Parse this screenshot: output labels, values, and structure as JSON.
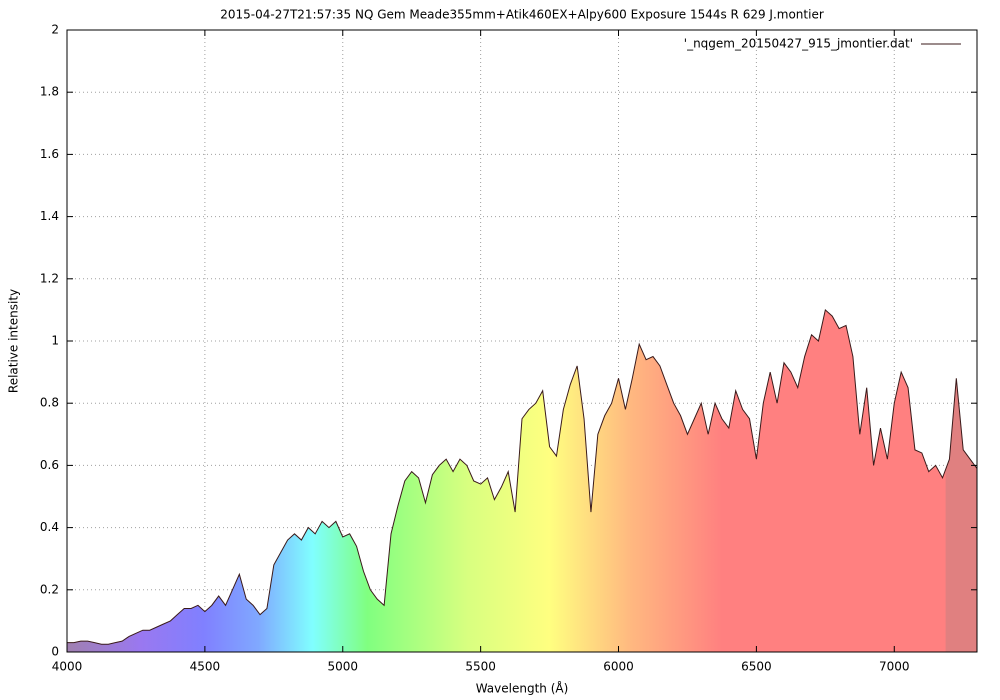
{
  "chart_data": {
    "type": "line",
    "title": "2015-04-27T21:57:35 NQ Gem Meade355mm+Atik460EX+Alpy600 Exposure 1544s R 629 J.montier",
    "x_label": "Wavelength (Å)",
    "y_label": "Relative intensity",
    "xlim": [
      4000,
      7300
    ],
    "ylim": [
      0,
      2
    ],
    "xticks": [
      4000,
      4500,
      5000,
      5500,
      6000,
      6500,
      7000
    ],
    "yticks": [
      0,
      0.2,
      0.4,
      0.6,
      0.8,
      1,
      1.2,
      1.4,
      1.6,
      1.8,
      2
    ],
    "grid": true,
    "legend": "top-right",
    "x": [
      4000,
      4025,
      4050,
      4075,
      4100,
      4125,
      4150,
      4175,
      4200,
      4225,
      4250,
      4275,
      4300,
      4325,
      4350,
      4375,
      4400,
      4425,
      4450,
      4475,
      4500,
      4525,
      4550,
      4575,
      4600,
      4625,
      4650,
      4675,
      4700,
      4725,
      4750,
      4775,
      4800,
      4825,
      4850,
      4875,
      4900,
      4925,
      4950,
      4975,
      5000,
      5025,
      5050,
      5075,
      5100,
      5125,
      5150,
      5175,
      5200,
      5225,
      5250,
      5275,
      5300,
      5325,
      5350,
      5375,
      5400,
      5425,
      5450,
      5475,
      5500,
      5525,
      5550,
      5575,
      5600,
      5625,
      5650,
      5675,
      5700,
      5725,
      5750,
      5775,
      5800,
      5825,
      5850,
      5875,
      5900,
      5925,
      5950,
      5975,
      6000,
      6025,
      6050,
      6075,
      6100,
      6125,
      6150,
      6175,
      6200,
      6225,
      6250,
      6275,
      6300,
      6325,
      6350,
      6375,
      6400,
      6425,
      6450,
      6475,
      6500,
      6525,
      6550,
      6575,
      6600,
      6625,
      6650,
      6675,
      6700,
      6725,
      6750,
      6775,
      6800,
      6825,
      6850,
      6875,
      6900,
      6925,
      6950,
      6975,
      7000,
      7025,
      7050,
      7075,
      7100,
      7125,
      7150,
      7175,
      7200,
      7225,
      7250,
      7275,
      7300
    ],
    "series": [
      {
        "name": "'_nqgem_20150427_915_jmontier.dat'",
        "color": "#3a1a1a",
        "values": [
          0.03,
          0.03,
          0.035,
          0.035,
          0.03,
          0.025,
          0.025,
          0.03,
          0.035,
          0.05,
          0.06,
          0.07,
          0.07,
          0.08,
          0.09,
          0.1,
          0.12,
          0.14,
          0.14,
          0.15,
          0.13,
          0.15,
          0.18,
          0.15,
          0.2,
          0.25,
          0.17,
          0.15,
          0.12,
          0.14,
          0.28,
          0.32,
          0.36,
          0.38,
          0.36,
          0.4,
          0.38,
          0.42,
          0.4,
          0.42,
          0.37,
          0.38,
          0.34,
          0.26,
          0.2,
          0.17,
          0.15,
          0.38,
          0.47,
          0.55,
          0.58,
          0.56,
          0.48,
          0.57,
          0.6,
          0.62,
          0.58,
          0.62,
          0.6,
          0.55,
          0.54,
          0.56,
          0.49,
          0.53,
          0.58,
          0.45,
          0.75,
          0.78,
          0.8,
          0.84,
          0.66,
          0.63,
          0.78,
          0.86,
          0.92,
          0.75,
          0.45,
          0.7,
          0.76,
          0.8,
          0.88,
          0.78,
          0.88,
          0.99,
          0.94,
          0.95,
          0.92,
          0.86,
          0.8,
          0.76,
          0.7,
          0.75,
          0.8,
          0.7,
          0.8,
          0.75,
          0.72,
          0.84,
          0.78,
          0.75,
          0.62,
          0.8,
          0.9,
          0.8,
          0.93,
          0.9,
          0.85,
          0.95,
          1.02,
          1.0,
          1.1,
          1.08,
          1.04,
          1.05,
          0.95,
          0.7,
          0.85,
          0.6,
          0.72,
          0.62,
          0.8,
          0.9,
          0.85,
          0.65,
          0.64,
          0.58,
          0.6,
          0.56,
          0.62,
          0.88,
          0.65,
          0.62,
          0.59
        ]
      }
    ]
  }
}
